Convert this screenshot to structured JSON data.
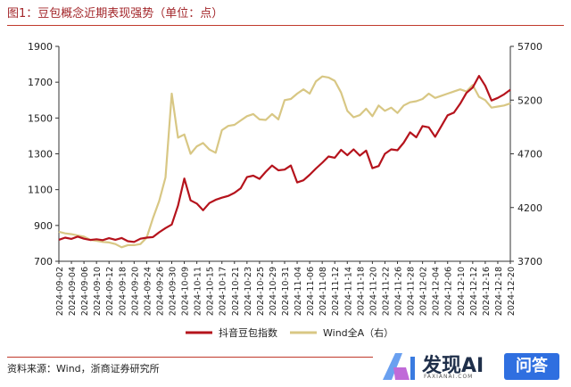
{
  "title": "图1：豆包概念近期表现强势（单位：点）",
  "source": "资料来源：Wind，浙商证券研究所",
  "brand": {
    "name": "发现AI",
    "sub": "FAXIANAI.COM",
    "button": "问答"
  },
  "colors": {
    "series1": "#b5131c",
    "series2": "#d8c784",
    "accent": "#c0392b"
  },
  "chart_data": {
    "type": "line",
    "x": [
      "2024-09-02",
      "2024-09-03",
      "2024-09-04",
      "2024-09-05",
      "2024-09-06",
      "2024-09-09",
      "2024-09-10",
      "2024-09-11",
      "2024-09-12",
      "2024-09-13",
      "2024-09-18",
      "2024-09-19",
      "2024-09-20",
      "2024-09-23",
      "2024-09-24",
      "2024-09-25",
      "2024-09-26",
      "2024-09-27",
      "2024-09-30",
      "2024-10-08",
      "2024-10-09",
      "2024-10-10",
      "2024-10-11",
      "2024-10-14",
      "2024-10-15",
      "2024-10-16",
      "2024-10-17",
      "2024-10-18",
      "2024-10-21",
      "2024-10-22",
      "2024-10-23",
      "2024-10-24",
      "2024-10-25",
      "2024-10-28",
      "2024-10-29",
      "2024-10-30",
      "2024-10-31",
      "2024-11-01",
      "2024-11-04",
      "2024-11-05",
      "2024-11-06",
      "2024-11-07",
      "2024-11-08",
      "2024-11-11",
      "2024-11-12",
      "2024-11-13",
      "2024-11-14",
      "2024-11-15",
      "2024-11-18",
      "2024-11-19",
      "2024-11-20",
      "2024-11-21",
      "2024-11-22",
      "2024-11-25",
      "2024-11-26",
      "2024-11-27",
      "2024-11-28",
      "2024-11-29",
      "2024-12-02",
      "2024-12-03",
      "2024-12-04",
      "2024-12-05",
      "2024-12-06",
      "2024-12-09",
      "2024-12-10",
      "2024-12-11",
      "2024-12-12",
      "2024-12-13",
      "2024-12-16",
      "2024-12-17",
      "2024-12-18",
      "2024-12-19",
      "2024-12-20"
    ],
    "x_tick_labels": [
      "2024-09-02",
      "2024-09-04",
      "2024-09-06",
      "2024-09-10",
      "2024-09-12",
      "2024-09-18",
      "2024-09-20",
      "2024-09-24",
      "2024-09-26",
      "2024-09-30",
      "2024-10-09",
      "2024-10-11",
      "2024-10-15",
      "2024-10-17",
      "2024-10-21",
      "2024-10-23",
      "2024-10-25",
      "2024-10-29",
      "2024-10-31",
      "2024-11-04",
      "2024-11-06",
      "2024-11-08",
      "2024-11-12",
      "2024-11-14",
      "2024-11-18",
      "2024-11-20",
      "2024-11-22",
      "2024-11-26",
      "2024-11-28",
      "2024-12-02",
      "2024-12-04",
      "2024-12-06",
      "2024-12-10",
      "2024-12-12",
      "2024-12-16",
      "2024-12-18",
      "2024-12-20"
    ],
    "series": [
      {
        "name": "抖音豆包指数",
        "axis": "left",
        "values": [
          820,
          832,
          825,
          838,
          826,
          819,
          823,
          818,
          829,
          820,
          830,
          812,
          808,
          826,
          832,
          835,
          862,
          885,
          905,
          1010,
          1162,
          1040,
          1022,
          985,
          1025,
          1043,
          1055,
          1065,
          1082,
          1108,
          1170,
          1178,
          1160,
          1200,
          1235,
          1208,
          1212,
          1235,
          1140,
          1152,
          1183,
          1218,
          1250,
          1285,
          1278,
          1322,
          1292,
          1325,
          1290,
          1318,
          1220,
          1232,
          1300,
          1325,
          1320,
          1362,
          1420,
          1392,
          1455,
          1448,
          1395,
          1455,
          1515,
          1530,
          1580,
          1640,
          1670,
          1735,
          1680,
          1598,
          1612,
          1632,
          1658
        ]
      },
      {
        "name": "Wind全A（右）",
        "axis": "right",
        "values": [
          3975,
          3960,
          3952,
          3940,
          3930,
          3900,
          3890,
          3880,
          3875,
          3860,
          3830,
          3850,
          3850,
          3860,
          3920,
          4100,
          4260,
          4480,
          5260,
          4850,
          4880,
          4700,
          4770,
          4800,
          4740,
          4710,
          4920,
          4960,
          4970,
          5010,
          5050,
          5070,
          5020,
          5015,
          5070,
          5020,
          5200,
          5210,
          5260,
          5300,
          5260,
          5375,
          5420,
          5410,
          5380,
          5270,
          5100,
          5040,
          5060,
          5120,
          5050,
          5150,
          5100,
          5130,
          5080,
          5150,
          5180,
          5190,
          5210,
          5260,
          5220,
          5240,
          5260,
          5280,
          5300,
          5280,
          5340,
          5230,
          5200,
          5130,
          5140,
          5150,
          5170
        ]
      }
    ],
    "y_left": {
      "min": 700,
      "max": 1900,
      "ticks": [
        700,
        900,
        1100,
        1300,
        1500,
        1700,
        1900
      ]
    },
    "y_right": {
      "min": 3700,
      "max": 5700,
      "ticks": [
        3700,
        4200,
        4700,
        5200,
        5700
      ]
    },
    "legend": [
      "抖音豆包指数",
      "Wind全A（右）"
    ],
    "legend_position": "bottom"
  }
}
